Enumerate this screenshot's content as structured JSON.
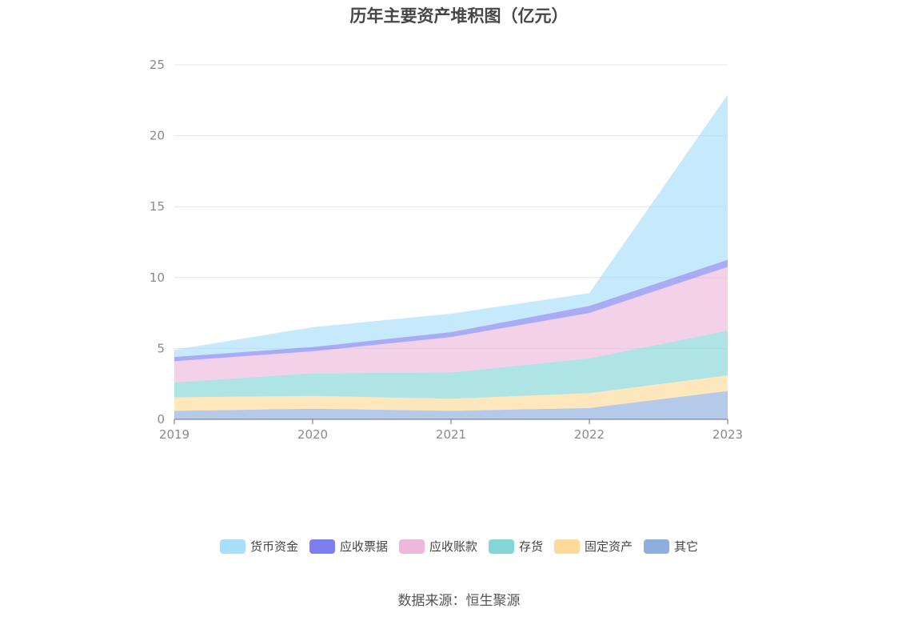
{
  "chart_data": {
    "type": "area",
    "stacked": true,
    "title": "历年主要资产堆积图（亿元）",
    "x": [
      "2019",
      "2020",
      "2021",
      "2022",
      "2023"
    ],
    "ylim": [
      0,
      25
    ],
    "yticks": [
      "0",
      "5",
      "10",
      "15",
      "20",
      "25"
    ],
    "grid": true,
    "legend_position": "bottom",
    "series": [
      {
        "name": "其它",
        "color": "#8eaedd",
        "values": [
          0.6,
          0.75,
          0.6,
          0.8,
          2.0
        ]
      },
      {
        "name": "固定资产",
        "color": "#fdd99a",
        "values": [
          0.95,
          0.9,
          0.85,
          1.05,
          1.1
        ]
      },
      {
        "name": "存货",
        "color": "#82d6d6",
        "values": [
          1.05,
          1.6,
          1.85,
          2.45,
          3.15
        ]
      },
      {
        "name": "应收账款",
        "color": "#ecb8dc",
        "values": [
          1.5,
          1.55,
          2.5,
          3.2,
          4.5
        ]
      },
      {
        "name": "应收票据",
        "color": "#7b7ff0",
        "values": [
          0.3,
          0.3,
          0.35,
          0.5,
          0.5
        ]
      },
      {
        "name": "货币资金",
        "color": "#a8dff9",
        "values": [
          0.5,
          1.4,
          1.3,
          0.9,
          11.65
        ]
      }
    ]
  },
  "source": "数据来源：恒生聚源"
}
